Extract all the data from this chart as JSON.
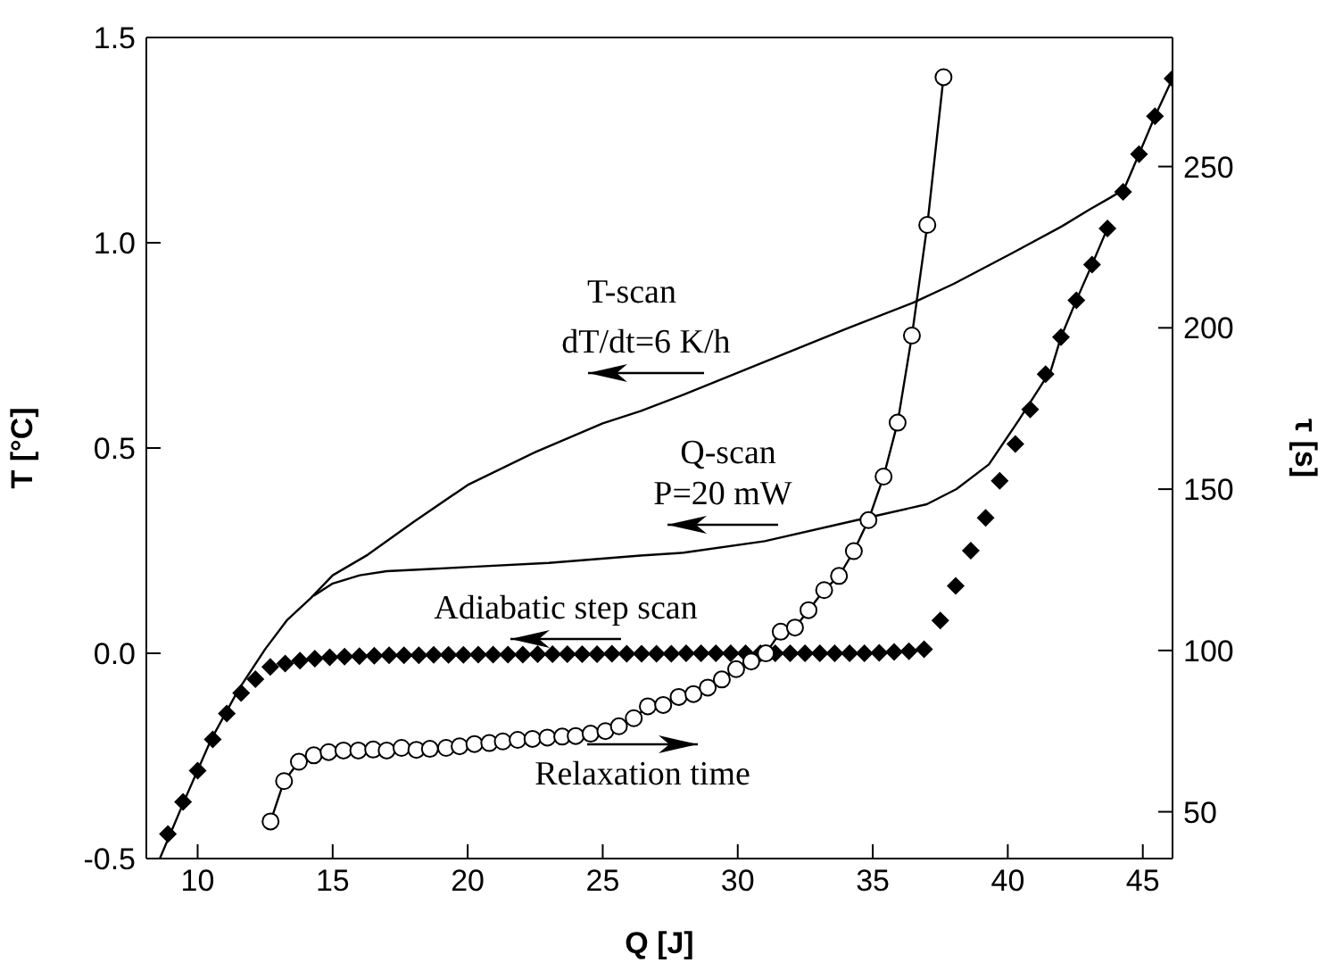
{
  "chart_data": {
    "type": "line",
    "xlabel": "Q [J]",
    "ylabel": "T [°C]",
    "y2label": "τ [s]",
    "xlim": [
      8.1,
      46.1
    ],
    "xticks": [
      10,
      15,
      20,
      25,
      30,
      35,
      40,
      45
    ],
    "ylim": [
      -0.5,
      1.5
    ],
    "yticks": [
      {
        "value": -0.5,
        "label": "-0.5"
      },
      {
        "value": 0,
        "label": "0.0"
      },
      {
        "value": 0.5,
        "label": "0.5"
      },
      {
        "value": 1,
        "label": "1.0"
      },
      {
        "value": 1.5,
        "label": "1.5"
      }
    ],
    "y2lim": [
      35.5,
      290
    ],
    "y2ticks": [
      50,
      100,
      150,
      200,
      250
    ],
    "grid": false,
    "series": [
      {
        "color": "#000000",
        "marker": "none",
        "x": [
          8.6,
          9.5,
          10.5,
          11.5,
          12.5,
          13.3,
          14.2,
          15,
          16.3,
          18,
          20,
          22.5,
          25,
          26.4,
          28,
          31,
          34,
          36.5,
          38,
          40.2,
          42,
          43,
          43.8,
          44.3,
          44.86,
          45.45,
          46.1
        ],
        "values": [
          -0.5,
          -0.36,
          -0.21,
          -0.09,
          0.01,
          0.08,
          0.135,
          0.19,
          0.24,
          0.32,
          0.41,
          0.49,
          0.56,
          0.59,
          0.63,
          0.71,
          0.79,
          0.854,
          0.9,
          0.976,
          1.04,
          1.08,
          1.11,
          1.13,
          1.216,
          1.308,
          1.4
        ]
      },
      {
        "type": "line",
        "color": "#000000",
        "marker": "none",
        "x": [
          14.3,
          15,
          16,
          17,
          18.5,
          20,
          23,
          26.4,
          28,
          31,
          34.45,
          37,
          38.1,
          39.3,
          40.4,
          41.6,
          41.97,
          42.54,
          43.12,
          43.69
        ],
        "values": [
          0.14,
          0.17,
          0.19,
          0.2,
          0.205,
          0.21,
          0.22,
          0.238,
          0.245,
          0.273,
          0.325,
          0.363,
          0.4,
          0.46,
          0.567,
          0.69,
          0.77,
          0.86,
          0.947,
          1.035
        ]
      },
      {
        "type": "scatter",
        "color": "#000000",
        "marker": "diamond",
        "x": [
          8.9,
          9.46,
          10.0,
          10.56,
          11.08,
          11.61,
          12.14,
          12.69,
          13.24,
          13.79,
          14.34,
          14.89,
          15.44,
          15.99,
          16.54,
          17.09,
          17.64,
          18.19,
          18.74,
          19.29,
          19.84,
          20.39,
          20.94,
          21.49,
          22.04,
          22.59,
          23.14,
          23.69,
          24.24,
          24.79,
          25.34,
          25.89,
          26.44,
          26.99,
          27.54,
          28.09,
          28.64,
          29.19,
          29.74,
          30.29,
          30.84,
          31.39,
          31.94,
          32.49,
          33.04,
          33.59,
          34.14,
          34.69,
          35.24,
          35.79,
          36.34,
          36.9,
          37.5,
          38.07,
          38.63,
          39.18,
          39.7,
          40.28,
          40.83,
          41.4,
          41.97,
          42.54,
          43.12,
          43.69,
          44.27,
          44.86,
          45.45,
          46.1
        ],
        "values": [
          -0.44,
          -0.362,
          -0.286,
          -0.21,
          -0.147,
          -0.097,
          -0.063,
          -0.033,
          -0.025,
          -0.018,
          -0.013,
          -0.01,
          -0.008,
          -0.007,
          -0.006,
          -0.005,
          -0.005,
          -0.005,
          -0.004,
          -0.004,
          -0.004,
          -0.003,
          -0.003,
          -0.003,
          -0.003,
          -0.002,
          -0.002,
          -0.002,
          -0.002,
          -0.002,
          -0.001,
          -0.001,
          -0.001,
          -0.001,
          -0.001,
          0,
          0,
          0,
          0,
          0,
          0,
          0,
          0,
          0,
          0,
          0,
          0,
          0,
          0.001,
          0.003,
          0.005,
          0.01,
          0.08,
          0.164,
          0.25,
          0.33,
          0.42,
          0.51,
          0.594,
          0.68,
          0.77,
          0.86,
          0.947,
          1.035,
          1.124,
          1.216,
          1.308,
          1.4
        ]
      },
      {
        "type": "line",
        "axis": "y2",
        "color": "#000000",
        "marker": "circle",
        "x": [
          12.7,
          13.2,
          13.75,
          14.3,
          14.85,
          15.4,
          15.95,
          16.5,
          17.0,
          17.55,
          18.1,
          18.6,
          19.2,
          19.7,
          20.25,
          20.8,
          21.3,
          21.85,
          22.4,
          22.95,
          23.5,
          24.0,
          24.55,
          25.1,
          25.6,
          26.15,
          26.67,
          27.24,
          27.81,
          28.36,
          28.89,
          29.41,
          29.94,
          30.5,
          31.04,
          31.59,
          32.12,
          32.62,
          33.2,
          33.75,
          34.3,
          34.84,
          35.4,
          35.92,
          36.45,
          37.02,
          37.62
        ],
        "values": [
          47,
          59.5,
          65.5,
          67.5,
          68.5,
          69,
          69,
          69.3,
          69,
          69.8,
          69.2,
          69.5,
          69.8,
          70.3,
          71,
          71.3,
          71.8,
          72.3,
          72.6,
          73,
          73.3,
          73.5,
          74.2,
          75,
          76.5,
          79,
          82.7,
          83.1,
          85.6,
          86.5,
          88.5,
          91,
          94.2,
          96.6,
          99.1,
          105.8,
          107.1,
          112.5,
          118.7,
          123.1,
          130.8,
          140.4,
          153.9,
          170.6,
          197.6,
          231.9,
          277.7
        ]
      }
    ],
    "annotations": [
      "T-scan",
      "dT/dt=6 K/h",
      "Q-scan",
      "P=20 mW",
      "Adiabatic step scan",
      "Relaxation time"
    ]
  }
}
